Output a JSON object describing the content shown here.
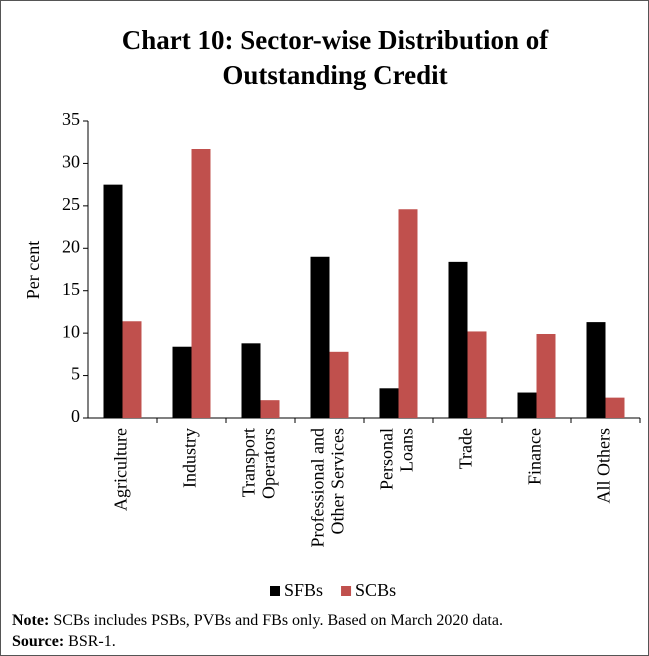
{
  "chart_data": {
    "type": "bar",
    "title": [
      "Chart 10: Sector-wise Distribution of",
      "Outstanding Credit"
    ],
    "y_label": "Per cent",
    "categories": [
      [
        "Agriculture"
      ],
      [
        "Industry"
      ],
      [
        "Transport",
        "Operators"
      ],
      [
        "Professional and",
        "Other Services"
      ],
      [
        "Personal",
        "Loans"
      ],
      [
        "Trade"
      ],
      [
        "Finance"
      ],
      [
        "All Others"
      ]
    ],
    "series": [
      {
        "name": "SFBs",
        "color": "#000000",
        "values": [
          27.5,
          8.4,
          8.8,
          19.0,
          3.5,
          18.4,
          3.0,
          11.3
        ]
      },
      {
        "name": "SCBs",
        "color": "#c0504d",
        "values": [
          11.4,
          31.7,
          2.1,
          7.8,
          24.6,
          10.2,
          9.9,
          2.4
        ]
      }
    ],
    "ylim": [
      0,
      35
    ],
    "yticks": [
      0,
      5,
      10,
      15,
      20,
      25,
      30,
      35
    ],
    "grid": false,
    "legend": "bottom"
  },
  "notes": {
    "note_label": "Note:",
    "note": "SCBs includes PSBs, PVBs and FBs only. Based on March 2020 data.",
    "source_label": "Source:",
    "source": "BSR-1."
  }
}
